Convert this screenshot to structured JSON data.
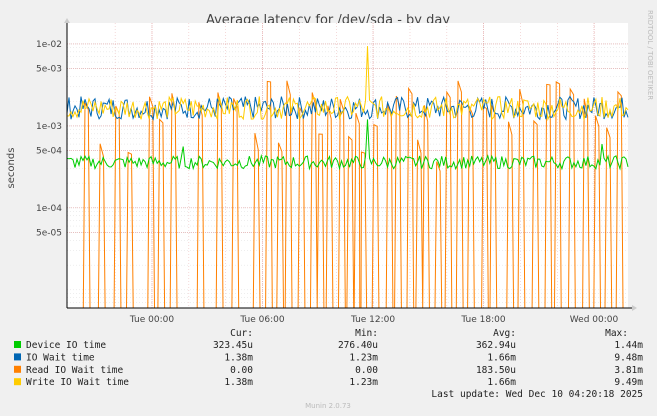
{
  "chart_data": {
    "type": "line",
    "title": "Average latency for /dev/sda - by day",
    "ylabel": "seconds",
    "yscale": "log",
    "ylim": [
      6e-06,
      0.018
    ],
    "y_ticks": [
      {
        "value": 0.01,
        "label": "1e-02"
      },
      {
        "value": 0.005,
        "label": "5e-03"
      },
      {
        "value": 0.001,
        "label": "1e-03"
      },
      {
        "value": 0.0005,
        "label": "5e-04"
      },
      {
        "value": 0.0001,
        "label": "1e-04"
      },
      {
        "value": 5e-05,
        "label": "5e-05"
      }
    ],
    "xlim": [
      0,
      1
    ],
    "x_ticks": [
      {
        "value": 0.1515,
        "label": "Tue 00:00"
      },
      {
        "value": 0.3485,
        "label": "Tue 06:00"
      },
      {
        "value": 0.5455,
        "label": "Tue 12:00"
      },
      {
        "value": 0.7424,
        "label": "Tue 18:00"
      },
      {
        "value": 0.9394,
        "label": "Wed 00:00"
      }
    ],
    "series": [
      {
        "name": "Device IO time",
        "color": "#00cc00",
        "base": 0.00036,
        "jitter": 0.08,
        "spikes": [
          [
            0.206,
            0.00056
          ],
          [
            0.535,
            0.0012
          ],
          [
            0.955,
            0.0006
          ]
        ]
      },
      {
        "name": "IO Wait time",
        "color": "#0066b3",
        "base": 0.00166,
        "jitter": 0.14,
        "spikes": []
      },
      {
        "name": "Read IO Wait time",
        "color": "#ff8000",
        "base": 0.0,
        "jitter": 0.0,
        "spikes": []
      },
      {
        "name": "Write IO Wait time",
        "color": "#ffcc00",
        "base": 0.00166,
        "jitter": 0.14,
        "spikes": [
          [
            0.535,
            0.0094
          ]
        ]
      }
    ],
    "read_spikes": [
      0.035,
      0.062,
      0.09,
      0.112,
      0.15,
      0.168,
      0.19,
      0.238,
      0.272,
      0.3,
      0.338,
      0.36,
      0.38,
      0.395,
      0.418,
      0.44,
      0.452,
      0.468,
      0.49,
      0.505,
      0.518,
      0.528,
      0.55,
      0.575,
      0.59,
      0.612,
      0.628,
      0.64,
      0.662,
      0.68,
      0.7,
      0.72,
      0.745,
      0.76,
      0.79,
      0.81,
      0.835,
      0.858,
      0.875,
      0.9,
      0.925,
      0.945,
      0.965,
      0.985
    ],
    "legend": {
      "headers": [
        "Cur:",
        "Min:",
        "Avg:",
        "Max:"
      ],
      "rows": [
        {
          "name": "Device IO time",
          "color": "#00cc00",
          "cur": "323.45u",
          "min": "276.40u",
          "avg": "362.94u",
          "max": "1.44m"
        },
        {
          "name": "IO Wait time",
          "color": "#0066b3",
          "cur": "1.38m",
          "min": "1.23m",
          "avg": "1.66m",
          "max": "9.48m"
        },
        {
          "name": "Read IO Wait time",
          "color": "#ff8000",
          "cur": "0.00",
          "min": "0.00",
          "avg": "183.50u",
          "max": "3.81m"
        },
        {
          "name": "Write IO Wait time",
          "color": "#ffcc00",
          "cur": "1.38m",
          "min": "1.23m",
          "avg": "1.66m",
          "max": "9.49m"
        }
      ]
    },
    "last_update": "Last update: Wed Dec 10 04:20:18 2025",
    "side_label": "RRDTOOL / TOBI OETIKER",
    "footer": "Munin 2.0.73"
  }
}
